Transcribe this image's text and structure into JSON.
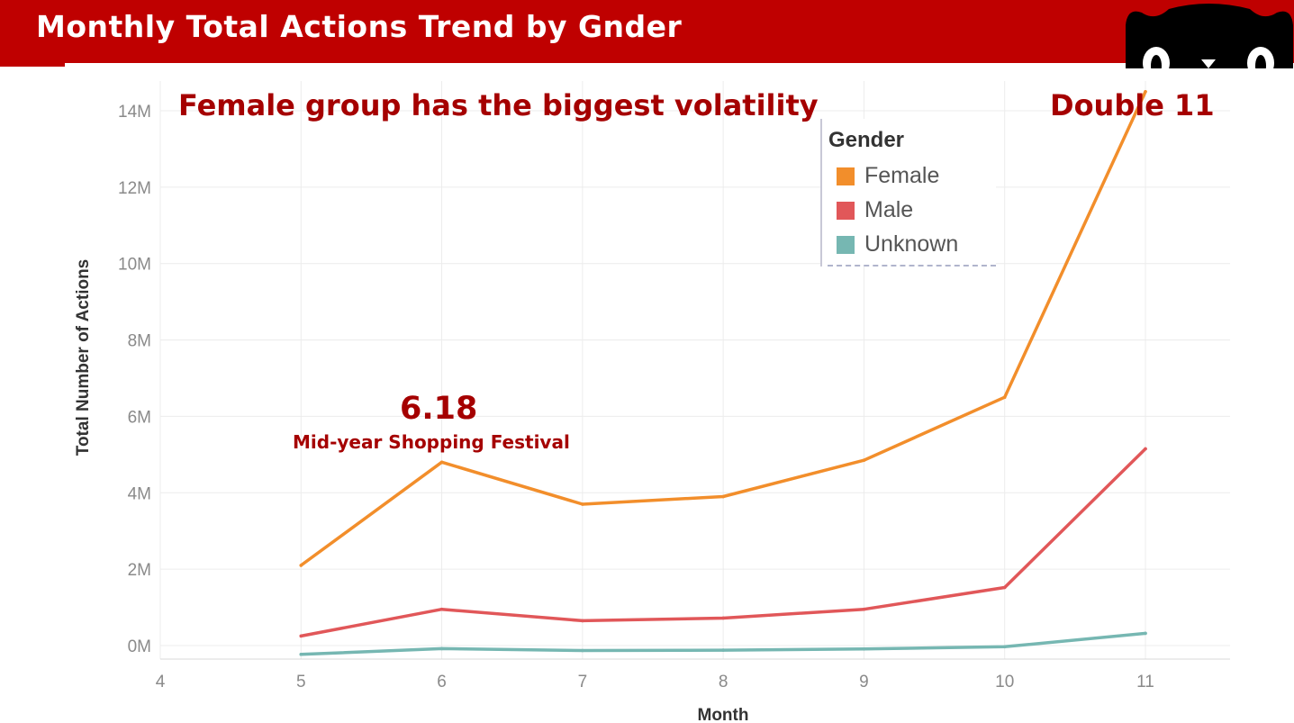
{
  "header": {
    "title": "Monthly Total Actions Trend by Gnder"
  },
  "annotations": {
    "volatility": "Female group has the biggest volatility",
    "double11": "Double 11",
    "festival_date": "6.18",
    "festival_name": "Mid-year Shopping Festival"
  },
  "legend": {
    "title": "Gender",
    "items": [
      {
        "label": "Female",
        "color": "#f28e2b"
      },
      {
        "label": "Male",
        "color": "#e15759"
      },
      {
        "label": "Unknown",
        "color": "#76b7b2"
      }
    ]
  },
  "chart_data": {
    "type": "line",
    "title": "Monthly Total Actions Trend by Gnder",
    "xlabel": "Month",
    "ylabel": "Total Number of Actions",
    "x": [
      5,
      6,
      7,
      8,
      9,
      10,
      11
    ],
    "xlim": [
      4,
      11
    ],
    "x_ticks": [
      "4",
      "5",
      "6",
      "7",
      "8",
      "9",
      "10",
      "11"
    ],
    "y_ticks": [
      {
        "value": 0,
        "label": "0M"
      },
      {
        "value": 2000000,
        "label": "2M"
      },
      {
        "value": 4000000,
        "label": "4M"
      },
      {
        "value": 6000000,
        "label": "6M"
      },
      {
        "value": 8000000,
        "label": "8M"
      },
      {
        "value": 10000000,
        "label": "10M"
      },
      {
        "value": 12000000,
        "label": "12M"
      },
      {
        "value": 14000000,
        "label": "14M"
      }
    ],
    "ylim": [
      -300000,
      14500000
    ],
    "grid": true,
    "legend_position": "top-right",
    "series": [
      {
        "name": "Female",
        "color": "#f28e2b",
        "values": [
          2100000,
          4800000,
          3700000,
          3900000,
          4850000,
          6500000,
          14500000
        ]
      },
      {
        "name": "Male",
        "color": "#e15759",
        "values": [
          250000,
          950000,
          650000,
          720000,
          950000,
          1520000,
          5150000
        ]
      },
      {
        "name": "Unknown",
        "color": "#76b7b2",
        "values": [
          -230000,
          -80000,
          -130000,
          -120000,
          -90000,
          -30000,
          320000
        ]
      }
    ]
  }
}
